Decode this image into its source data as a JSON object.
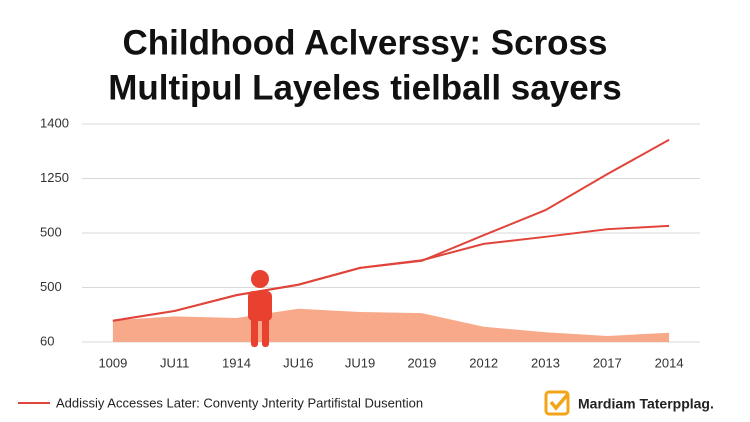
{
  "chart_data": {
    "type": "line",
    "title": [
      "Childhood Aclverssy: Scross",
      "Multipul Layeles tielball sayers"
    ],
    "categories": [
      "1009",
      "JU11",
      "1914",
      "JU16",
      "JU19",
      "2019",
      "2012",
      "2013",
      "2017",
      "2014"
    ],
    "ylim": [
      0,
      4
    ],
    "yticks": [
      {
        "value": 0,
        "label": "60"
      },
      {
        "value": 1,
        "label": "500"
      },
      {
        "value": 2,
        "label": "500"
      },
      {
        "value": 3,
        "label": "1250"
      },
      {
        "value": 4,
        "label": "1400"
      }
    ],
    "grid": true,
    "series": [
      {
        "name": "Addissiy Accesses Later: Conventy Jnterity Partifistal Dusention",
        "color": "#e0443a",
        "values": [
          0.39,
          0.57,
          0.86,
          1.05,
          1.36,
          1.49,
          1.96,
          2.42,
          3.08,
          3.71
        ]
      },
      {
        "color": "#e0443a",
        "values": [
          0.39,
          0.57,
          0.86,
          1.05,
          1.36,
          1.5,
          1.8,
          1.93,
          2.07,
          2.13
        ]
      },
      {
        "type": "area",
        "color": "#f8a98a",
        "values": [
          0.4,
          0.47,
          0.44,
          0.61,
          0.55,
          0.53,
          0.28,
          0.18,
          0.11,
          0.17
        ]
      }
    ],
    "brand": "Mardiam Taterpplag."
  }
}
